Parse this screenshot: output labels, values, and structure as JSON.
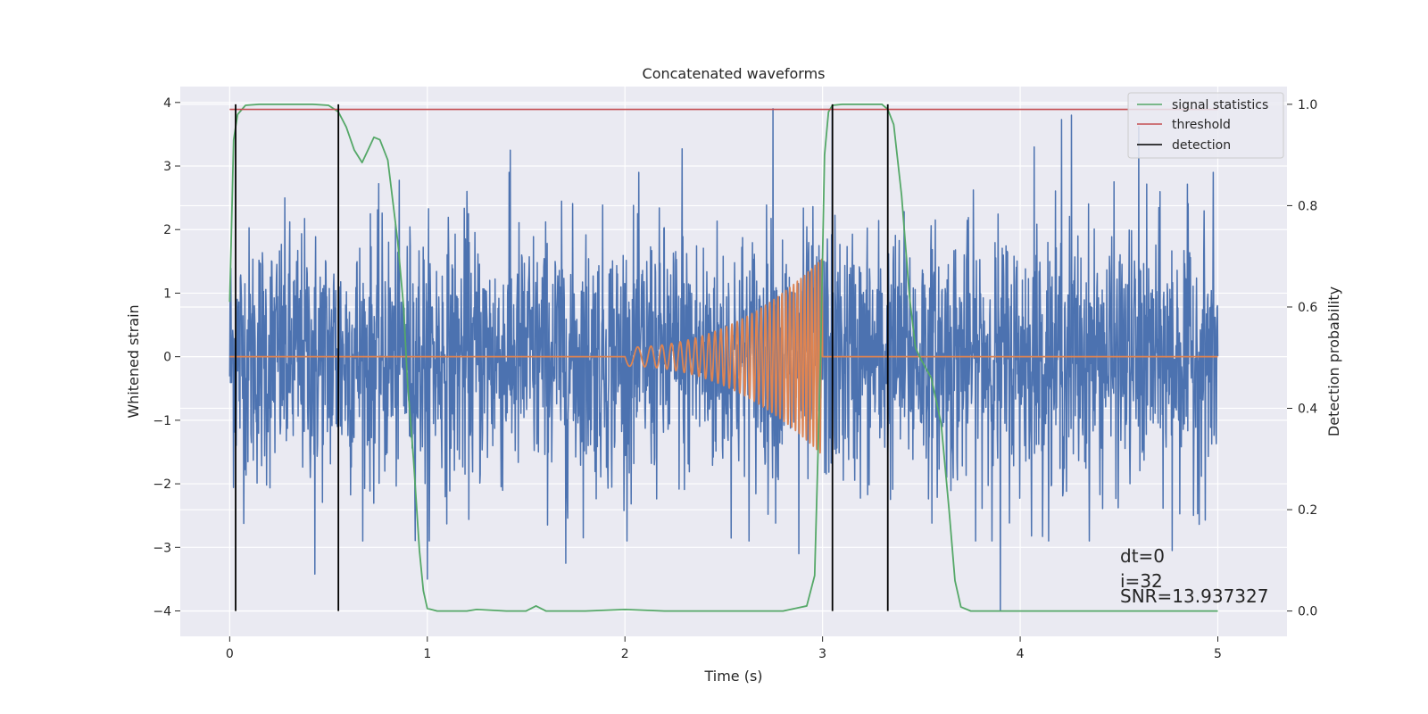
{
  "chart_data": {
    "type": "line",
    "title": "Concatenated waveforms",
    "xlabel": "Time (s)",
    "ylabel": "Whitened strain",
    "y2label": "Detection probability",
    "xlim": [
      -0.25,
      5.35
    ],
    "ylim": [
      -4.4,
      4.25
    ],
    "y2lim": [
      -0.05,
      1.035
    ],
    "x_ticks": [
      0,
      1,
      2,
      3,
      4,
      5
    ],
    "x_tick_labels": [
      "0",
      "1",
      "2",
      "3",
      "4",
      "5"
    ],
    "y_ticks": [
      4,
      3,
      2,
      1,
      0,
      -1,
      -2,
      -3,
      -4
    ],
    "y_tick_labels": [
      "4",
      "3",
      "2",
      "1",
      "0",
      "−1",
      "−2",
      "−3",
      "−4"
    ],
    "y2_ticks": [
      1.0,
      0.8,
      0.6,
      0.4,
      0.2,
      0.0
    ],
    "y2_tick_labels": [
      "1.0",
      "0.8",
      "0.6",
      "0.4",
      "0.2",
      "0.0"
    ],
    "grid": true,
    "legend_position": "top-right",
    "colors": {
      "background": "#eaeaf2",
      "grid": "#ffffff",
      "strain": "#4c72b0",
      "template": "#dd8452",
      "signal_statistics": "#55a868",
      "threshold": "#c44e52",
      "detection": "#000000"
    },
    "series": [
      {
        "name": "",
        "axis": "left",
        "kind": "noise",
        "x_range": [
          0,
          5
        ],
        "sample_count": 2600,
        "std": 1.0,
        "extremes": [
          {
            "x": 0.43,
            "y": -3.42
          },
          {
            "x": 1.0,
            "y": -3.5
          },
          {
            "x": 1.2,
            "y": 2.6
          },
          {
            "x": 1.42,
            "y": 3.25
          },
          {
            "x": 1.7,
            "y": -3.25
          },
          {
            "x": 2.29,
            "y": 3.27
          },
          {
            "x": 2.75,
            "y": 3.9
          },
          {
            "x": 2.88,
            "y": -3.1
          },
          {
            "x": 3.05,
            "y": 3.88
          },
          {
            "x": 3.9,
            "y": -4.0
          },
          {
            "x": 4.07,
            "y": 3.3
          },
          {
            "x": 4.21,
            "y": 3.73
          },
          {
            "x": 4.26,
            "y": 3.8
          },
          {
            "x": 4.6,
            "y": 3.62
          },
          {
            "x": 4.77,
            "y": -3.05
          }
        ]
      },
      {
        "name": "",
        "axis": "left",
        "kind": "chirp",
        "x_range": [
          0,
          5
        ],
        "chirp_range": [
          2.0,
          3.0
        ],
        "start_frequency": 10,
        "end_frequency": 60,
        "start_amplitude": 0.15,
        "end_amplitude": 1.55
      },
      {
        "name": "signal statistics",
        "axis": "right",
        "kind": "line",
        "x": [
          0,
          0.02,
          0.04,
          0.08,
          0.15,
          0.3,
          0.42,
          0.5,
          0.55,
          0.59,
          0.63,
          0.67,
          0.7,
          0.73,
          0.76,
          0.8,
          0.85,
          0.88,
          0.9,
          0.93,
          0.96,
          0.98,
          1.0,
          1.05,
          1.2,
          1.25,
          1.4,
          1.5,
          1.55,
          1.6,
          1.8,
          2.0,
          2.2,
          2.5,
          2.8,
          2.92,
          2.96,
          2.99,
          3.01,
          3.03,
          3.05,
          3.1,
          3.2,
          3.3,
          3.33,
          3.36,
          3.4,
          3.44,
          3.47,
          3.5,
          3.55,
          3.6,
          3.64,
          3.67,
          3.7,
          3.75,
          3.9,
          4.5,
          5.0
        ],
        "y": [
          0.61,
          0.93,
          0.98,
          0.998,
          1.0,
          1.0,
          1.0,
          0.998,
          0.985,
          0.955,
          0.91,
          0.885,
          0.91,
          0.935,
          0.93,
          0.89,
          0.73,
          0.6,
          0.45,
          0.3,
          0.12,
          0.04,
          0.005,
          0.0,
          0.0,
          0.003,
          0.0,
          0.0,
          0.01,
          0.0,
          0.0,
          0.003,
          0.0,
          0.0,
          0.0,
          0.01,
          0.07,
          0.5,
          0.9,
          0.985,
          0.998,
          1.0,
          1.0,
          1.0,
          0.99,
          0.96,
          0.82,
          0.62,
          0.52,
          0.495,
          0.46,
          0.37,
          0.2,
          0.06,
          0.008,
          0.0,
          0.0,
          0.0,
          0.0
        ]
      },
      {
        "name": "threshold",
        "axis": "right",
        "kind": "line",
        "x": [
          0,
          5
        ],
        "y": [
          0.99,
          0.99
        ]
      },
      {
        "name": "detection",
        "axis": "right",
        "kind": "vlines",
        "x": [
          0.03,
          0.55,
          3.05,
          3.33
        ],
        "ymin": 0.0,
        "ymax": 1.0
      }
    ],
    "annotations": [
      "dt=0",
      "i=32",
      "SNR=13.937327"
    ]
  }
}
